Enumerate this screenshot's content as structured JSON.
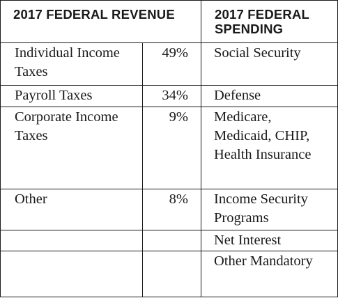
{
  "headers": {
    "revenue": "2017 FEDERAL REVENUE",
    "spending": "2017 FEDERAL SPENDING"
  },
  "rows": [
    {
      "revenue": "Individual Income Taxes",
      "percent": "49%",
      "spending": "Social Security"
    },
    {
      "revenue": "Payroll Taxes",
      "percent": "34%",
      "spending": "Defense"
    },
    {
      "revenue": "Corporate Income Taxes",
      "percent": "9%",
      "spending": "Medicare, Medicaid, CHIP, Health Insurance"
    },
    {
      "revenue": "Other",
      "percent": "8%",
      "spending": "Income Security Programs"
    },
    {
      "revenue": "",
      "percent": "",
      "spending": "Net Interest"
    },
    {
      "revenue": "",
      "percent": "",
      "spending": "Other Mandatory"
    }
  ]
}
